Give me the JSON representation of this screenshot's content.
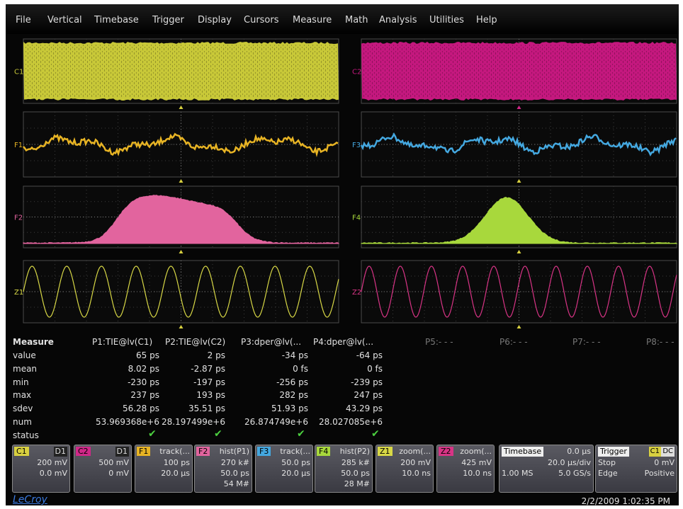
{
  "menu": [
    "File",
    "Vertical",
    "Timebase",
    "Trigger",
    "Display",
    "Cursors",
    "Measure",
    "Math",
    "Analysis",
    "Utilities",
    "Help"
  ],
  "panels": [
    {
      "label": "C1",
      "color": "#c8c838"
    },
    {
      "label": "C2",
      "color": "#c4187e"
    },
    {
      "label": "F1",
      "color": "#e8b424"
    },
    {
      "label": "F3",
      "color": "#44a8e0"
    },
    {
      "label": "F2",
      "color": "#e2649e"
    },
    {
      "label": "F4",
      "color": "#a8d83c"
    },
    {
      "label": "Z1",
      "color": "#d8d846"
    },
    {
      "label": "Z2",
      "color": "#d83486"
    }
  ],
  "measure": {
    "header": [
      "Measure",
      "P1:TIE@lv(C1)",
      "P2:TIE@lv(C2)",
      "P3:dper@lv(...",
      "P4:dper@lv(...",
      "P5:- - -",
      "P6:- - -",
      "P7:- - -",
      "P8:- - -"
    ],
    "rows": [
      {
        "label": "value",
        "values": [
          "65 ps",
          "2 ps",
          "-34 ps",
          "-64 ps"
        ]
      },
      {
        "label": "mean",
        "values": [
          "8.02 ps",
          "-2.87 ps",
          "0 fs",
          "0 fs"
        ]
      },
      {
        "label": "min",
        "values": [
          "-230 ps",
          "-197 ps",
          "-256 ps",
          "-239 ps"
        ]
      },
      {
        "label": "max",
        "values": [
          "237 ps",
          "193 ps",
          "282 ps",
          "247 ps"
        ]
      },
      {
        "label": "sdev",
        "values": [
          "56.28 ps",
          "35.51 ps",
          "51.93 ps",
          "43.29 ps"
        ]
      },
      {
        "label": "num",
        "values": [
          "53.969368e+6",
          "28.197499e+6",
          "26.874749e+6",
          "28.027085e+6"
        ]
      },
      {
        "label": "status",
        "values": []
      }
    ]
  },
  "descriptors": [
    {
      "badge": "C1",
      "color": "#d8d040",
      "title": "D1",
      "lines": [
        "200 mV",
        "0.0 mV"
      ]
    },
    {
      "badge": "C2",
      "color": "#d02888",
      "title": "D1",
      "lines": [
        "500 mV",
        "0 mV"
      ]
    },
    {
      "badge": "F1",
      "color": "#e8b424",
      "title": "track(...",
      "lines": [
        "100 ps",
        "20.0 µs"
      ]
    },
    {
      "badge": "F2",
      "color": "#e2649e",
      "title": "hist(P1)",
      "lines": [
        "270 k#",
        "50.0 ps",
        "54 M#"
      ]
    },
    {
      "badge": "F3",
      "color": "#44a8e0",
      "title": "track(...",
      "lines": [
        "50.0 ps",
        "20.0 µs"
      ]
    },
    {
      "badge": "F4",
      "color": "#a8d83c",
      "title": "hist(P2)",
      "lines": [
        "285 k#",
        "50.0 ps",
        "28 M#"
      ]
    },
    {
      "badge": "Z1",
      "color": "#d8d846",
      "title": "zoom(...",
      "lines": [
        "200 mV",
        "10.0 ns"
      ]
    },
    {
      "badge": "Z2",
      "color": "#d83486",
      "title": "zoom(...",
      "lines": [
        "425 mV",
        "10.0 ns"
      ]
    }
  ],
  "timebase": {
    "title": "Timebase",
    "delay": "0.0 µs",
    "rows": [
      [
        "",
        "20.0 µs/div"
      ],
      [
        "1.00 MS",
        "5.0 GS/s"
      ]
    ]
  },
  "trigger": {
    "title": "Trigger",
    "source": "C1",
    "coupling": "DC",
    "rows": [
      [
        "Stop",
        "0 mV"
      ],
      [
        "Edge",
        "Positive"
      ]
    ]
  },
  "footer": {
    "brand": "LeCroy",
    "datetime": "2/2/2009 1:02:35 PM"
  }
}
